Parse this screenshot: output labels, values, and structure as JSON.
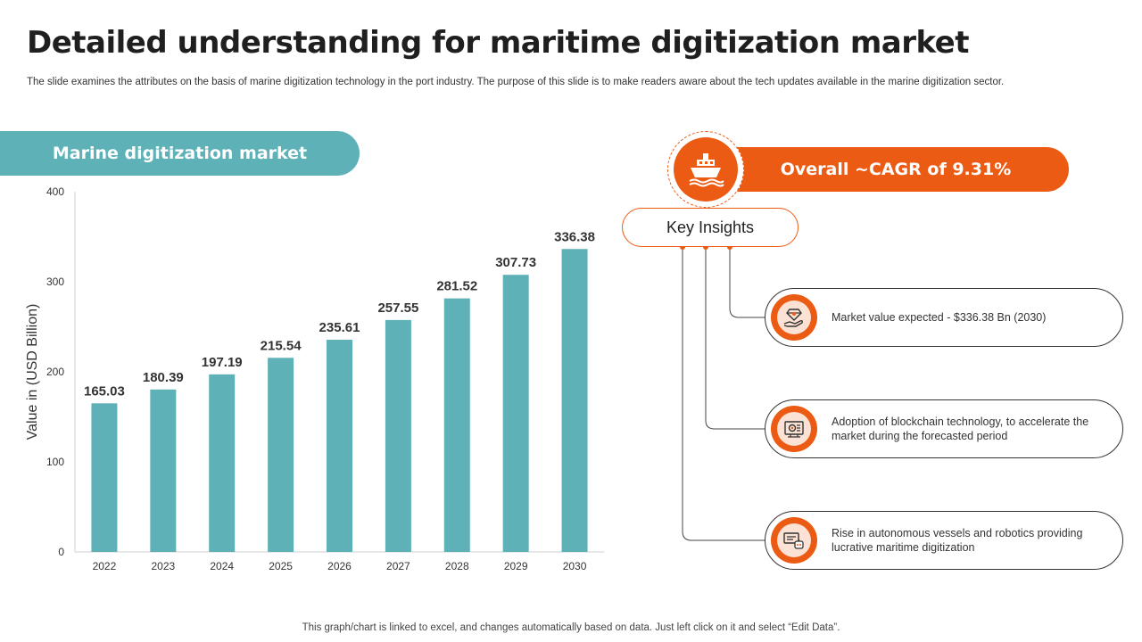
{
  "header": {
    "title": "Detailed understanding for maritime digitization market",
    "subtitle": "The slide examines the attributes on the basis of marine digitization technology in the port industry. The purpose of this slide is to make readers aware about the tech updates available in the marine digitization sector."
  },
  "market_label": "Marine digitization market",
  "chart_data": {
    "type": "bar",
    "categories": [
      "2022",
      "2023",
      "2024",
      "2025",
      "2026",
      "2027",
      "2028",
      "2029",
      "2030"
    ],
    "values": [
      165.03,
      180.39,
      197.19,
      215.54,
      235.61,
      257.55,
      281.52,
      307.73,
      336.38
    ],
    "data_labels": [
      "165.03",
      "180.39",
      "197.19",
      "215.54",
      "235.61",
      "257.55",
      "281.52",
      "307.73",
      "336.38"
    ],
    "ylabel": "Value in (USD Billion)",
    "ylim": [
      0,
      400
    ],
    "yticks": [
      "0",
      "100",
      "200",
      "300",
      "400"
    ],
    "grid": false,
    "bar_color": "#5eb1b6"
  },
  "cagr": {
    "label": "Overall ~CAGR of 9.31%",
    "icon": "ship-icon",
    "accent": "#ec5b13"
  },
  "key_insights": {
    "label": "Key Insights",
    "items": [
      {
        "icon": "diamond-hand-icon",
        "text": "Market value expected - $336.38 Bn (2030)"
      },
      {
        "icon": "blockchain-gear-icon",
        "text": "Adoption of blockchain technology, to accelerate the market during the forecasted period"
      },
      {
        "icon": "robot-screen-icon",
        "text": "Rise in autonomous vessels and robotics providing lucrative maritime digitization"
      }
    ]
  },
  "footer": "This graph/chart is linked to excel, and changes automatically based on data. Just left click on it and select “Edit Data”."
}
